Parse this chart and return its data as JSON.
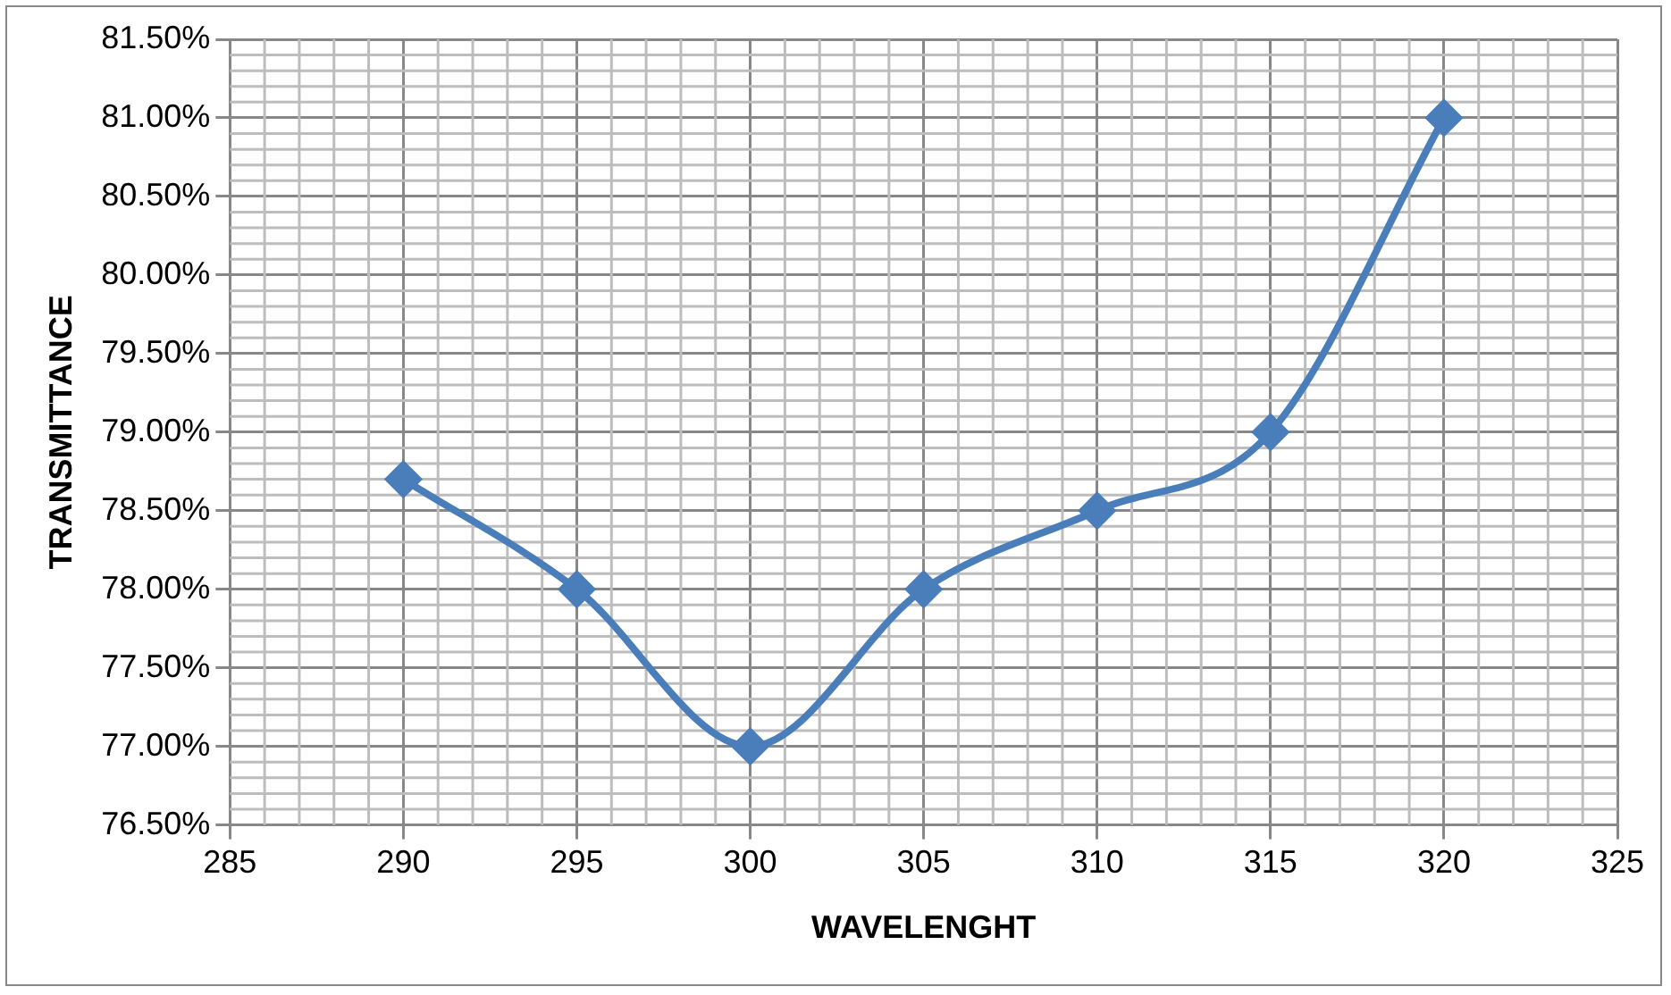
{
  "chart_data": {
    "type": "line",
    "xlabel": "WAVELENGHT",
    "ylabel": "TRANSMITTANCE",
    "x": [
      290,
      295,
      300,
      305,
      310,
      315,
      320
    ],
    "series": [
      {
        "color": "#4a7ebb",
        "values": [
          78.7,
          78.0,
          77.0,
          78.0,
          78.5,
          79.0,
          81.0
        ]
      }
    ],
    "xlim": [
      285,
      325
    ],
    "xticks": [
      285,
      290,
      295,
      300,
      305,
      310,
      315,
      320,
      325
    ],
    "ylim": [
      76.5,
      81.5
    ],
    "yticks": [
      {
        "value": 76.5,
        "label": "76.50%"
      },
      {
        "value": 77,
        "label": "77.00%"
      },
      {
        "value": 77.5,
        "label": "77.50%"
      },
      {
        "value": 78,
        "label": "78.00%"
      },
      {
        "value": 78.5,
        "label": "78.50%"
      },
      {
        "value": 79,
        "label": "79.00%"
      },
      {
        "value": 79.5,
        "label": "79.50%"
      },
      {
        "value": 80,
        "label": "80.00%"
      },
      {
        "value": 80.5,
        "label": "80.50%"
      },
      {
        "value": 81,
        "label": "81.00%"
      },
      {
        "value": 81.5,
        "label": "81.50%"
      }
    ],
    "grid": true,
    "legend": false,
    "marker": "diamond",
    "line_style": "solid"
  }
}
